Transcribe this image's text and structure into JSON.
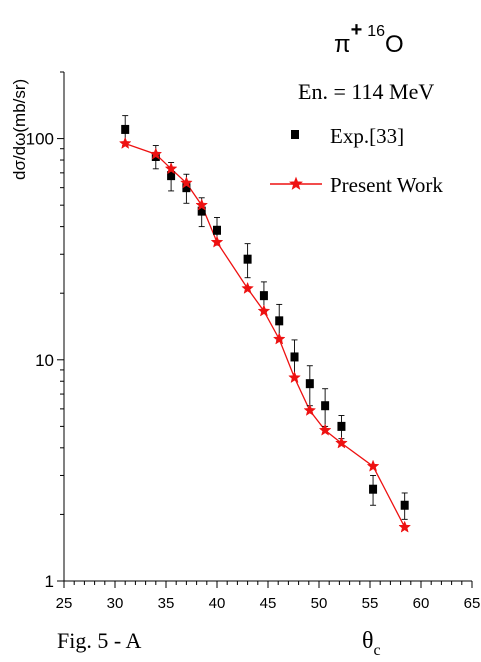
{
  "chart_data": {
    "type": "scatter",
    "title": "π+16O",
    "title_parts": {
      "pi": "π",
      "charge": "+",
      "mass": "16",
      "nucleus": "O"
    },
    "energy_label": "En. = 114 MeV",
    "xlabel": "θc",
    "xlabel_parts": {
      "theta": "θ",
      "sub": "c"
    },
    "ylabel": "dσ/dω(mb/sr)",
    "figure_label": "Fig. 5 - A",
    "x_scale": "linear",
    "y_scale": "log",
    "xlim": [
      25,
      65
    ],
    "ylim": [
      1,
      200
    ],
    "x_ticks": [
      25,
      30,
      35,
      40,
      45,
      50,
      55,
      60,
      65
    ],
    "y_ticks": [
      1,
      10,
      100
    ],
    "grid": false,
    "legend_position": "top-right",
    "series": [
      {
        "name": "Exp.[33]",
        "style": "square-markers-with-errorbars",
        "color": "#000000",
        "x": [
          31.0,
          34.0,
          35.5,
          37.0,
          38.5,
          40.0,
          43.0,
          44.6,
          46.1,
          47.6,
          49.1,
          50.6,
          52.2,
          55.3,
          58.4
        ],
        "y": [
          110,
          83,
          68,
          60,
          47,
          38.5,
          28.5,
          19.5,
          15.0,
          10.3,
          7.8,
          6.2,
          5.0,
          2.6,
          2.2
        ],
        "err_plus": [
          17,
          10,
          10,
          9,
          7,
          5.5,
          5,
          3,
          2.8,
          2,
          1.6,
          1.2,
          0.6,
          0.4,
          0.3
        ],
        "err_minus": [
          17,
          10,
          10,
          9,
          7,
          5.5,
          5,
          3,
          2.8,
          2,
          1.6,
          1.2,
          0.6,
          0.4,
          0.3
        ]
      },
      {
        "name": "Present Work",
        "style": "line-with-star-markers",
        "color": "#ee1111",
        "x": [
          31.0,
          34.0,
          35.5,
          37.0,
          38.5,
          40.0,
          43.0,
          44.6,
          46.1,
          47.6,
          49.1,
          50.6,
          52.2,
          55.3,
          58.4
        ],
        "y": [
          95,
          85,
          73,
          63,
          50,
          34,
          21,
          16.6,
          12.4,
          8.3,
          5.9,
          4.8,
          4.2,
          3.3,
          1.75
        ]
      }
    ]
  }
}
